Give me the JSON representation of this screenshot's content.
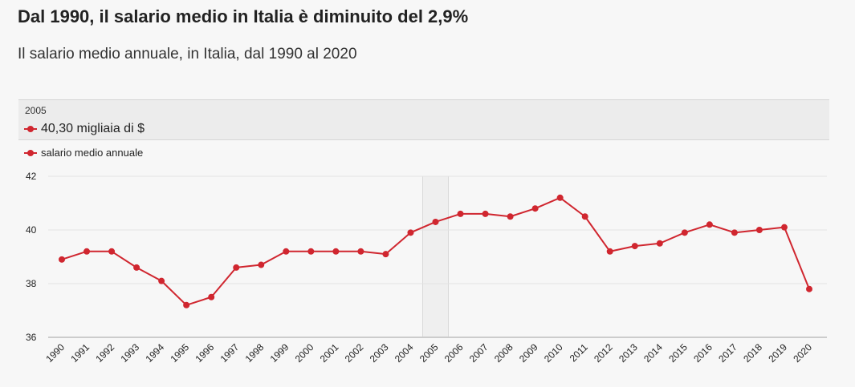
{
  "header": {
    "title": "Dal 1990, il salario medio in Italia è diminuito del 2,9%",
    "subtitle": "Il salario medio annuale, in Italia, dal 1990 al 2020"
  },
  "tooltip": {
    "year": "2005",
    "value": "40,30 migliaia di $"
  },
  "colors": {
    "series": "#d0262f",
    "grid": "#e3e3e3",
    "axis": "#cccccc",
    "highlight": "#efefef"
  },
  "chart_data": {
    "type": "line",
    "title": "Dal 1990, il salario medio in Italia è diminuito del 2,9%",
    "subtitle": "Il salario medio annuale, in Italia, dal 1990 al 2020",
    "xlabel": "",
    "ylabel": "",
    "ylim": [
      36,
      42
    ],
    "yticks": [
      "36",
      "38",
      "40",
      "42"
    ],
    "grid": true,
    "legend_position": "top-left",
    "highlighted_category": "2005",
    "categories": [
      "1990",
      "1991",
      "1992",
      "1993",
      "1994",
      "1995",
      "1996",
      "1997",
      "1998",
      "1999",
      "2000",
      "2001",
      "2002",
      "2003",
      "2004",
      "2005",
      "2006",
      "2007",
      "2008",
      "2009",
      "2010",
      "2011",
      "2012",
      "2013",
      "2014",
      "2015",
      "2016",
      "2017",
      "2018",
      "2019",
      "2020"
    ],
    "series": [
      {
        "name": "salario medio annuale",
        "values": [
          38.9,
          39.2,
          39.2,
          38.6,
          38.1,
          37.2,
          37.5,
          38.6,
          38.7,
          39.2,
          39.2,
          39.2,
          39.2,
          39.1,
          39.9,
          40.3,
          40.6,
          40.6,
          40.5,
          40.8,
          41.2,
          40.5,
          39.2,
          39.4,
          39.5,
          39.9,
          40.2,
          39.9,
          40.0,
          40.1,
          37.8
        ]
      }
    ]
  }
}
